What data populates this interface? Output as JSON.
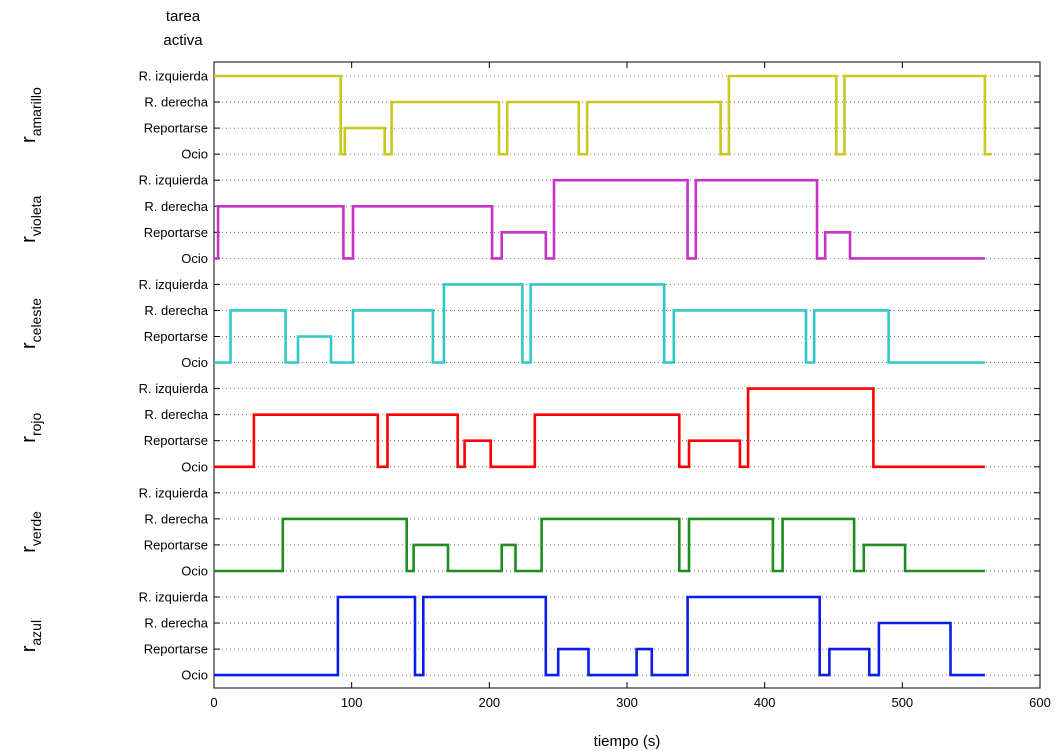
{
  "chart_data": {
    "type": "line",
    "title_lines": [
      "tarea",
      "activa"
    ],
    "xlabel": "tiempo (s)",
    "xlim": [
      0,
      600
    ],
    "xticks": [
      0,
      100,
      200,
      300,
      400,
      500,
      600
    ],
    "levels": [
      "Ocio",
      "Reportarse",
      "R. derecha",
      "R. izquierda"
    ],
    "grid": true,
    "series": [
      {
        "label_main": "r",
        "label_sub": "amarillo",
        "color": "#c8c81e",
        "x": [
          0,
          92,
          92,
          95,
          95,
          124,
          124,
          129,
          129,
          207,
          207,
          213,
          213,
          265,
          265,
          271,
          271,
          368,
          368,
          374,
          374,
          452,
          452,
          458,
          458,
          560,
          560,
          565
        ],
        "y": [
          3,
          3,
          0,
          0,
          1,
          1,
          0,
          0,
          2,
          2,
          0,
          0,
          2,
          2,
          0,
          0,
          2,
          2,
          0,
          0,
          3,
          3,
          0,
          0,
          3,
          3,
          0,
          0
        ]
      },
      {
        "label_main": "r",
        "label_sub": "violeta",
        "color": "#c832c8",
        "x": [
          0,
          3,
          3,
          94,
          94,
          101,
          101,
          202,
          202,
          209,
          209,
          241,
          241,
          247,
          247,
          344,
          344,
          350,
          350,
          438,
          438,
          444,
          444,
          462,
          462,
          560
        ],
        "y": [
          0,
          0,
          2,
          2,
          0,
          0,
          2,
          2,
          0,
          0,
          1,
          1,
          0,
          0,
          3,
          3,
          0,
          0,
          3,
          3,
          0,
          0,
          1,
          1,
          0,
          0
        ]
      },
      {
        "label_main": "r",
        "label_sub": "celeste",
        "color": "#32c8c8",
        "x": [
          0,
          12,
          12,
          52,
          52,
          61,
          61,
          85,
          85,
          101,
          101,
          159,
          159,
          167,
          167,
          224,
          224,
          230,
          230,
          327,
          327,
          334,
          334,
          430,
          430,
          436,
          436,
          490,
          490,
          560
        ],
        "y": [
          0,
          0,
          2,
          2,
          0,
          0,
          1,
          1,
          0,
          0,
          2,
          2,
          0,
          0,
          3,
          3,
          0,
          0,
          3,
          3,
          0,
          0,
          2,
          2,
          0,
          0,
          2,
          2,
          0,
          0
        ]
      },
      {
        "label_main": "r",
        "label_sub": "rojo",
        "color": "#ff0000",
        "x": [
          0,
          29,
          29,
          119,
          119,
          126,
          126,
          177,
          177,
          182,
          182,
          201,
          201,
          233,
          233,
          338,
          338,
          345,
          345,
          382,
          382,
          388,
          388,
          479,
          479,
          560
        ],
        "y": [
          0,
          0,
          2,
          2,
          0,
          0,
          2,
          2,
          0,
          0,
          1,
          1,
          0,
          0,
          2,
          2,
          0,
          0,
          1,
          1,
          0,
          0,
          3,
          3,
          0,
          0
        ]
      },
      {
        "label_main": "r",
        "label_sub": "verde",
        "color": "#1e8c1e",
        "x": [
          0,
          50,
          50,
          140,
          140,
          145,
          145,
          170,
          170,
          209,
          209,
          219,
          219,
          238,
          238,
          338,
          338,
          345,
          345,
          406,
          406,
          413,
          413,
          465,
          465,
          472,
          472,
          502,
          502,
          560
        ],
        "y": [
          0,
          0,
          2,
          2,
          0,
          0,
          1,
          1,
          0,
          0,
          1,
          1,
          0,
          0,
          2,
          2,
          0,
          0,
          2,
          2,
          0,
          0,
          2,
          2,
          0,
          0,
          1,
          1,
          0,
          0
        ]
      },
      {
        "label_main": "r",
        "label_sub": "azul",
        "color": "#0a1ee6",
        "x": [
          0,
          90,
          90,
          146,
          146,
          152,
          152,
          241,
          241,
          250,
          250,
          272,
          272,
          307,
          307,
          318,
          318,
          344,
          344,
          440,
          440,
          447,
          447,
          476,
          476,
          483,
          483,
          535,
          535,
          560
        ],
        "y": [
          0,
          0,
          3,
          3,
          0,
          0,
          3,
          3,
          0,
          0,
          1,
          1,
          0,
          0,
          1,
          1,
          0,
          0,
          3,
          3,
          0,
          0,
          1,
          1,
          0,
          0,
          2,
          2,
          0,
          0
        ]
      }
    ]
  }
}
